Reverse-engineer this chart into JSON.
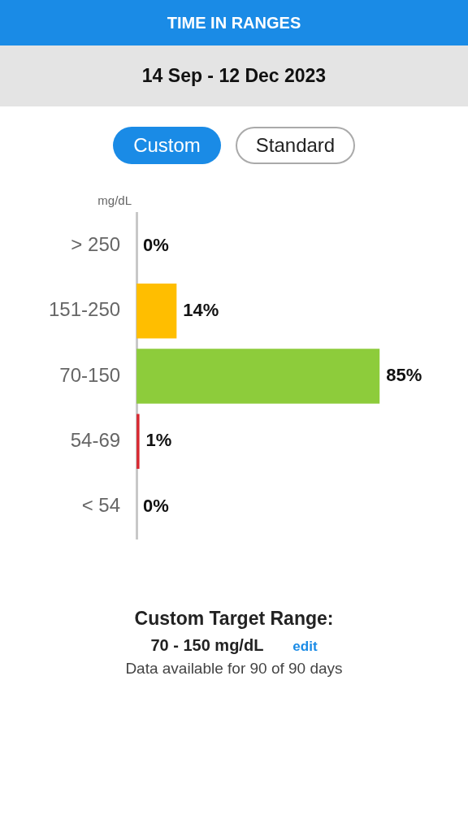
{
  "chart_data": {
    "type": "bar",
    "orientation": "horizontal",
    "title": "TIME IN RANGES",
    "subtitle": "14 Sep - 12 Dec 2023",
    "ylabel": "mg/dL",
    "categories": [
      "> 250",
      "151-250",
      "70-150",
      "54-69",
      "< 54"
    ],
    "values": [
      0,
      14,
      85,
      1,
      0
    ],
    "colors": [
      "#f07d1a",
      "#ffbe00",
      "#8dcc3b",
      "#d8262f",
      "#a11c2b"
    ],
    "value_labels": [
      "0%",
      "14%",
      "85%",
      "1%",
      "0%"
    ],
    "annotations": [
      "Custom",
      "Standard",
      "Custom Target Range:",
      "70 - 150 mg/dL",
      "edit",
      "Data available for 90 of 90 days"
    ]
  }
}
